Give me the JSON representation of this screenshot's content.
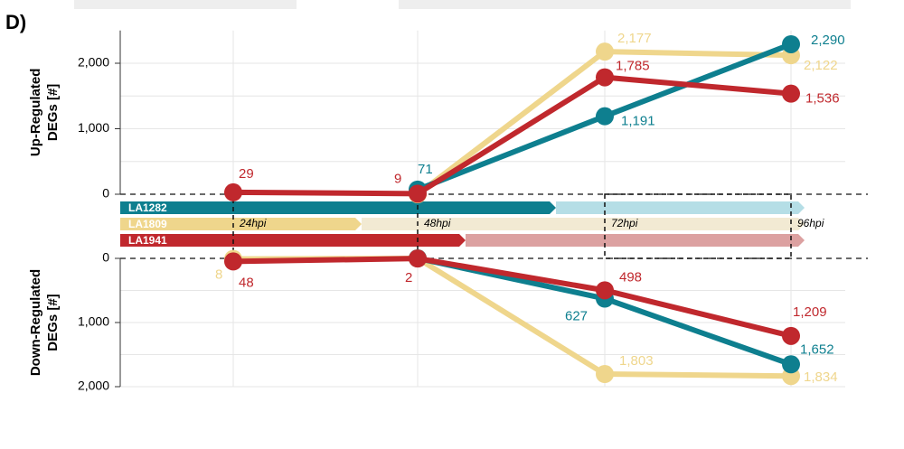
{
  "panel_label": "D)",
  "chart_data": [
    {
      "type": "line",
      "y_label": [
        "Up-Regulated",
        "DEGs [#]"
      ],
      "categories": [
        "24hpi",
        "48hpi",
        "72hpi",
        "96hpi"
      ],
      "ylim": [
        0,
        2500
      ],
      "yticks": [
        0,
        {
          "value": 1000,
          "label": "1,000"
        },
        {
          "value": 2000,
          "label": "2,000"
        }
      ],
      "grid": true,
      "series": [
        {
          "name": "LA1809",
          "color": "#efd68c",
          "values": [
            null,
            0,
            2177,
            2122
          ],
          "value_labels": [
            null,
            null,
            "2,177",
            "2,122"
          ]
        },
        {
          "name": "LA1282",
          "color": "#0e7f8f",
          "values": [
            null,
            71,
            1191,
            2290
          ],
          "value_labels": [
            null,
            "71",
            "1,191",
            "2,290"
          ]
        },
        {
          "name": "LA1941",
          "color": "#c0282d",
          "values": [
            29,
            9,
            1785,
            1536
          ],
          "value_labels": [
            "29",
            "9",
            "1,785",
            "1,536"
          ]
        }
      ]
    },
    {
      "type": "line",
      "y_label": [
        "Down-Regulated",
        "DEGs [#]"
      ],
      "inverted": true,
      "ylim": [
        0,
        2000
      ],
      "yticks": [
        0,
        {
          "value": 1000,
          "label": "1,000"
        },
        {
          "value": 2000,
          "label": "2,000"
        }
      ],
      "grid": true,
      "series": [
        {
          "name": "LA1809",
          "color": "#efd68c",
          "values": [
            8,
            0,
            1803,
            1834
          ],
          "value_labels": [
            "8",
            null,
            "1,803",
            "1,834"
          ]
        },
        {
          "name": "LA1282",
          "color": "#0e7f8f",
          "values": [
            null,
            0,
            627,
            1652
          ],
          "value_labels": [
            null,
            null,
            "627",
            "1,652"
          ]
        },
        {
          "name": "LA1941",
          "color": "#c0282d",
          "values": [
            48,
            2,
            498,
            1209
          ],
          "value_labels": [
            "48",
            "2",
            "498",
            "1,209"
          ]
        }
      ]
    }
  ]
}
